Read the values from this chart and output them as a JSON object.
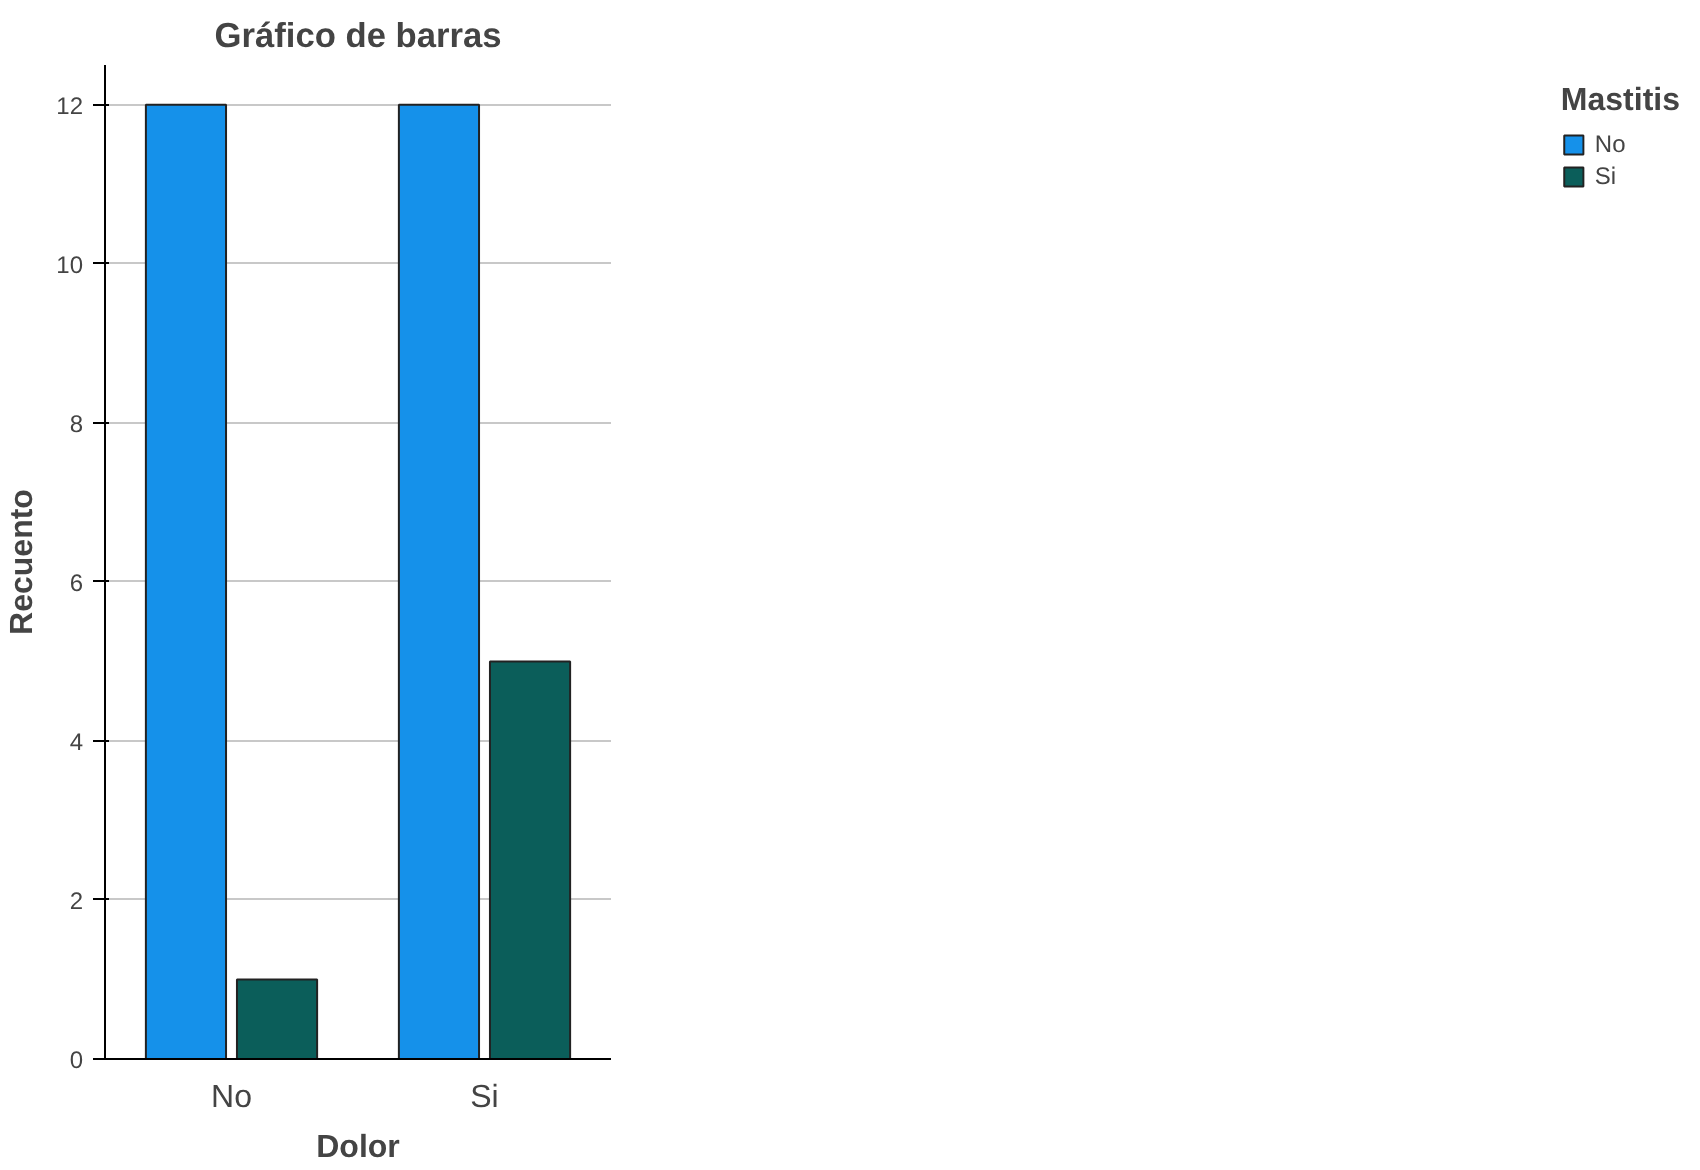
{
  "chart_data": {
    "type": "bar",
    "title": "Gráfico de barras",
    "xlabel": "Dolor",
    "ylabel": "Recuento",
    "legend_title": "Mastitis",
    "categories": [
      "No",
      "Si"
    ],
    "series": [
      {
        "name": "No",
        "color": "#1591ea",
        "values": [
          12,
          12
        ]
      },
      {
        "name": "Si",
        "color": "#0b5e5a",
        "values": [
          1,
          5
        ]
      }
    ],
    "ylim": [
      0,
      12.5
    ],
    "yticks": [
      0,
      2,
      4,
      6,
      8,
      10,
      12
    ],
    "grid": "y",
    "legend": "top right"
  }
}
